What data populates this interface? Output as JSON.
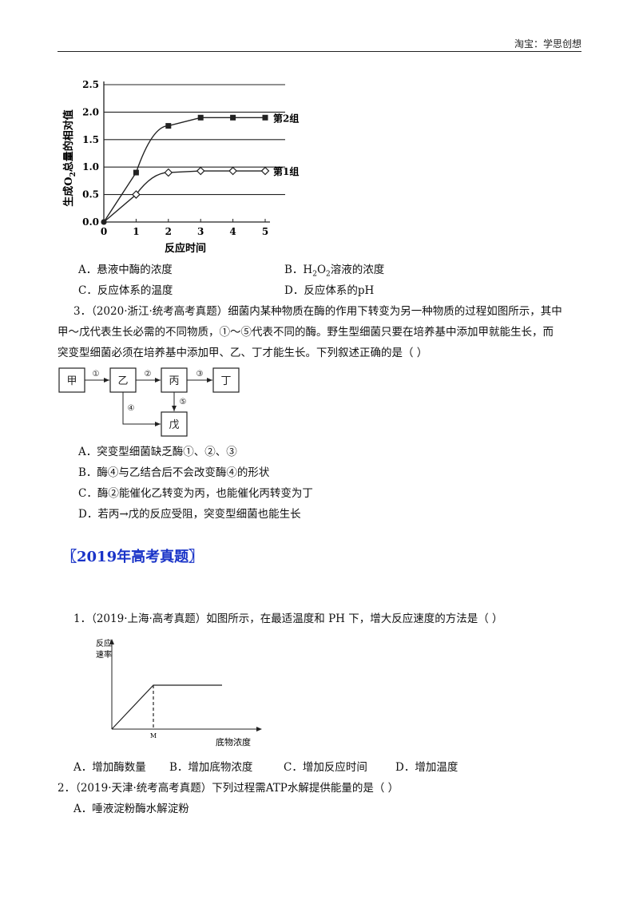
{
  "header": {
    "text": "淘宝：学思创想"
  },
  "chart1": {
    "ylabel_parts": [
      "生成O",
      "2",
      "总量的相对值"
    ],
    "xlabel": "反应时间",
    "y_ticks": [
      "2.5",
      "2.0",
      "1.5",
      "1.0",
      "0.5",
      "0.0"
    ],
    "x_ticks": [
      "0",
      "1",
      "2",
      "3",
      "4",
      "5"
    ],
    "series_labels": [
      "第2组",
      "第1组"
    ]
  },
  "chart_data": [
    {
      "type": "line",
      "title": "",
      "xlabel": "反应时间",
      "ylabel": "生成O2总量的相对值",
      "x": [
        0,
        1,
        2,
        3,
        4,
        5
      ],
      "xlim": [
        0,
        5
      ],
      "ylim": [
        0,
        2.5
      ],
      "y_ticks": [
        0.0,
        0.5,
        1.0,
        1.5,
        2.0,
        2.5
      ],
      "grid": "horizontal",
      "series": [
        {
          "name": "第2组",
          "marker": "filled-square",
          "values": [
            0,
            0.9,
            1.75,
            1.9,
            1.9,
            1.9
          ]
        },
        {
          "name": "第1组",
          "marker": "open-diamond",
          "values": [
            0,
            0.5,
            0.9,
            0.93,
            0.93,
            0.93
          ]
        }
      ]
    },
    {
      "type": "line",
      "title": "",
      "xlabel": "底物浓度",
      "ylabel": "反应速率",
      "x_tick_labels": [
        "M"
      ],
      "note": "rate rises linearly with substrate concentration until M, then stays level"
    }
  ],
  "q2_options": [
    {
      "letter": "A．",
      "text": "悬液中酶的浓度"
    },
    {
      "letter": "B．",
      "pre": "H",
      "sub1": "2",
      "mid": "O",
      "sub2": "2",
      "post": "溶液的浓度"
    },
    {
      "letter": "C．",
      "text": "反应体系的温度"
    },
    {
      "letter": "D．",
      "text": "反应体系的pH"
    }
  ],
  "q3": {
    "lines": [
      "3．（2020·浙江·统考高考真题）细菌内某种物质在酶的作用下转变为另一种物质的过程如图所示，其中",
      "甲～戊代表生长必需的不同物质，①～⑤代表不同的酶。野生型细菌只要在培养基中添加甲就能生长，而",
      "突变型细菌必须在培养基中添加甲、乙、丁才能生长。下列叙述正确的是（          ）"
    ],
    "diagram": {
      "nodes": [
        "甲",
        "乙",
        "丙",
        "丁",
        "戊"
      ],
      "enzymes": [
        "①",
        "②",
        "③",
        "④",
        "⑤"
      ]
    },
    "options": [
      "A．突变型细菌缺乏酶①、②、③",
      "B．酶④与乙结合后不会改变酶④的形状",
      "C．酶②能催化乙转变为丙，也能催化丙转变为丁",
      "D．若丙→戊的反应受阻，突变型细菌也能生长"
    ]
  },
  "section_title": "〖2019年高考真题〗",
  "q1_2019": {
    "stem": "1．（2019·上海·高考真题）如图所示，在最适温度和  PH  下，增大反应速度的方法是（          ）",
    "graph": {
      "ylabel": [
        "反应",
        "速率"
      ],
      "xlabel": "底物浓度",
      "tick": "M"
    },
    "options": [
      "A．增加酶数量",
      "B．增加底物浓度",
      "C．增加反应时间",
      "D．增加温度"
    ]
  },
  "q2_2019": {
    "stem": "2．（2019·天津·统考高考真题）下列过程需ATP水解提供能量的是（          ）",
    "options": [
      "A．唾液淀粉酶水解淀粉"
    ]
  }
}
